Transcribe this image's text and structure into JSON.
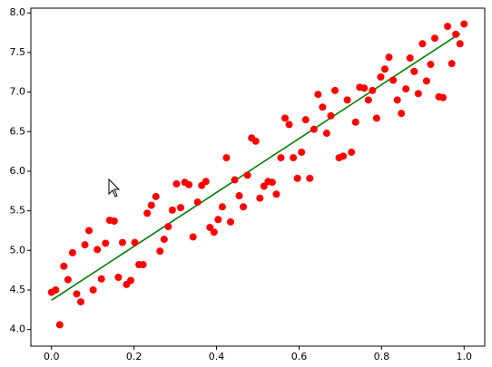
{
  "chart_data": {
    "type": "scatter",
    "xlim": [
      -0.05,
      1.05
    ],
    "ylim": [
      3.79,
      8.06
    ],
    "xticks": [
      {
        "value": 0,
        "label": "0.0"
      },
      {
        "value": 0.2,
        "label": "0.2"
      },
      {
        "value": 0.4,
        "label": "0.4"
      },
      {
        "value": 0.6,
        "label": "0.6"
      },
      {
        "value": 0.8,
        "label": "0.8"
      },
      {
        "value": 1,
        "label": "1.0"
      }
    ],
    "yticks": [
      {
        "value": 4,
        "label": "4.0"
      },
      {
        "value": 4.5,
        "label": "4.5"
      },
      {
        "value": 5,
        "label": "5.0"
      },
      {
        "value": 5.5,
        "label": "5.5"
      },
      {
        "value": 6,
        "label": "6.0"
      },
      {
        "value": 6.5,
        "label": "6.5"
      },
      {
        "value": 7,
        "label": "7.0"
      },
      {
        "value": 7.5,
        "label": "7.5"
      },
      {
        "value": 8,
        "label": "8.0"
      }
    ],
    "series": [
      {
        "type": "scatter",
        "color": "#ff0000",
        "x": [
          0.0,
          0.01,
          0.02,
          0.03,
          0.04,
          0.051,
          0.061,
          0.071,
          0.081,
          0.091,
          0.101,
          0.111,
          0.121,
          0.131,
          0.141,
          0.152,
          0.162,
          0.172,
          0.182,
          0.192,
          0.202,
          0.212,
          0.222,
          0.232,
          0.242,
          0.253,
          0.263,
          0.273,
          0.283,
          0.293,
          0.303,
          0.313,
          0.323,
          0.333,
          0.343,
          0.354,
          0.364,
          0.374,
          0.384,
          0.394,
          0.404,
          0.414,
          0.424,
          0.434,
          0.444,
          0.455,
          0.465,
          0.475,
          0.485,
          0.495,
          0.505,
          0.515,
          0.525,
          0.535,
          0.545,
          0.556,
          0.566,
          0.576,
          0.586,
          0.596,
          0.606,
          0.616,
          0.626,
          0.636,
          0.646,
          0.657,
          0.667,
          0.677,
          0.687,
          0.697,
          0.707,
          0.717,
          0.727,
          0.737,
          0.747,
          0.758,
          0.768,
          0.778,
          0.788,
          0.798,
          0.808,
          0.818,
          0.828,
          0.838,
          0.848,
          0.859,
          0.869,
          0.879,
          0.889,
          0.899,
          0.909,
          0.919,
          0.929,
          0.939,
          0.949,
          0.96,
          0.97,
          0.98,
          0.99,
          1.0
        ],
        "values": [
          4.47,
          4.5,
          4.06,
          4.8,
          4.63,
          4.97,
          4.45,
          4.35,
          5.07,
          5.25,
          4.5,
          5.01,
          4.64,
          5.09,
          5.38,
          5.37,
          4.66,
          5.1,
          4.57,
          4.62,
          5.1,
          4.82,
          4.82,
          5.47,
          5.57,
          5.68,
          4.99,
          5.14,
          5.3,
          5.51,
          5.84,
          5.54,
          5.86,
          5.83,
          5.17,
          5.61,
          5.82,
          5.87,
          5.29,
          5.23,
          5.39,
          5.55,
          6.17,
          5.36,
          5.89,
          5.69,
          5.55,
          5.95,
          6.42,
          6.38,
          5.66,
          5.81,
          5.87,
          5.86,
          5.71,
          6.17,
          6.67,
          6.59,
          6.17,
          5.91,
          6.24,
          6.65,
          5.91,
          6.53,
          6.97,
          6.81,
          6.48,
          6.7,
          7.02,
          6.17,
          6.19,
          6.9,
          6.24,
          6.62,
          7.06,
          7.05,
          6.9,
          7.02,
          6.67,
          7.19,
          7.29,
          7.44,
          7.15,
          6.9,
          6.73,
          7.04,
          7.43,
          7.26,
          6.98,
          7.61,
          7.14,
          7.35,
          7.68,
          6.94,
          6.93,
          7.83,
          7.36,
          7.73,
          7.61,
          7.86
        ]
      },
      {
        "type": "line",
        "color": "#008000",
        "x": [
          0,
          0.99
        ],
        "values": [
          4.37,
          7.74
        ]
      }
    ]
  }
}
